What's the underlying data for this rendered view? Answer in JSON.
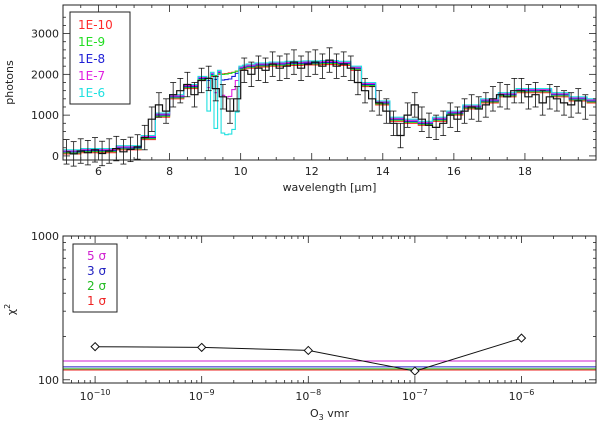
{
  "chart_data": [
    {
      "type": "line",
      "title": "",
      "xlabel": "wavelength [μm]",
      "ylabel": "photons",
      "xlim": [
        5.0,
        20.0
      ],
      "ylim": [
        -100,
        3700
      ],
      "x_ticks": [
        6,
        8,
        10,
        12,
        14,
        16,
        18
      ],
      "y_ticks": [
        0,
        1000,
        2000,
        3000
      ],
      "legend_position": "top-left",
      "observed": {
        "name": "observed",
        "x": [
          5.1,
          5.3,
          5.5,
          5.7,
          5.9,
          6.1,
          6.3,
          6.5,
          6.7,
          6.9,
          7.1,
          7.3,
          7.5,
          7.7,
          7.9,
          8.1,
          8.3,
          8.5,
          8.7,
          8.9,
          9.1,
          9.3,
          9.5,
          9.7,
          9.9,
          10.1,
          10.3,
          10.5,
          10.7,
          10.9,
          11.1,
          11.3,
          11.5,
          11.7,
          11.9,
          12.1,
          12.3,
          12.5,
          12.7,
          12.9,
          13.1,
          13.3,
          13.5,
          13.7,
          13.9,
          14.1,
          14.3,
          14.5,
          14.7,
          14.9,
          15.1,
          15.3,
          15.5,
          15.7,
          15.9,
          16.1,
          16.3,
          16.5,
          16.7,
          16.9,
          17.1,
          17.3,
          17.5,
          17.7,
          17.9,
          18.1,
          18.3,
          18.5,
          18.7,
          18.9,
          19.1,
          19.3,
          19.5,
          19.7
        ],
        "y": [
          100,
          50,
          120,
          80,
          150,
          60,
          120,
          180,
          100,
          160,
          220,
          450,
          900,
          1250,
          1100,
          1500,
          1600,
          1750,
          1500,
          1850,
          1900,
          1650,
          1450,
          1100,
          1400,
          2100,
          2000,
          2150,
          2100,
          2250,
          2150,
          2200,
          2300,
          2150,
          2250,
          2300,
          2200,
          2350,
          2200,
          2250,
          2150,
          1800,
          1600,
          1400,
          1300,
          1100,
          800,
          500,
          1000,
          1250,
          900,
          750,
          700,
          800,
          1000,
          900,
          1100,
          1200,
          1150,
          1250,
          1400,
          1500,
          1450,
          1600,
          1600,
          1450,
          1500,
          1300,
          1450,
          1400,
          1300,
          1250,
          1350,
          1200
        ],
        "error": 300
      },
      "series": [
        {
          "name": "1E-10",
          "color": "#ff2a2a"
        },
        {
          "name": "1E-9",
          "color": "#22dd22"
        },
        {
          "name": "1E-8",
          "color": "#1f1fd6"
        },
        {
          "name": "1E-7",
          "color": "#e020e0"
        },
        {
          "name": "1E-6",
          "color": "#20e0e0"
        }
      ],
      "model_x": [
        5.0,
        6.0,
        7.0,
        7.4,
        7.8,
        8.2,
        8.6,
        9.0,
        9.2,
        9.4,
        9.6,
        9.8,
        10.0,
        10.2,
        10.6,
        11.0,
        11.5,
        12.0,
        12.5,
        13.0,
        13.2,
        13.6,
        14.0,
        14.4,
        14.8,
        15.2,
        15.6,
        16.0,
        16.5,
        17.0,
        17.5,
        18.0,
        18.5,
        19.0,
        19.5,
        20.0
      ],
      "model_base": [
        50,
        80,
        150,
        400,
        950,
        1400,
        1650,
        1850,
        1950,
        2000,
        2020,
        2050,
        2100,
        2150,
        2180,
        2200,
        2220,
        2230,
        2240,
        2220,
        2100,
        1700,
        1250,
        850,
        800,
        750,
        850,
        1000,
        1150,
        1300,
        1450,
        1550,
        1550,
        1450,
        1350,
        1300
      ],
      "band_x": [
        9.1,
        9.3,
        9.5,
        9.6,
        9.7,
        9.8,
        9.9,
        10.1
      ],
      "band_dip": {
        "1E-10": [
          0,
          0,
          0,
          0,
          0,
          0,
          0,
          0
        ],
        "1E-9": [
          -20,
          -30,
          -40,
          -40,
          -40,
          -30,
          -20,
          0
        ],
        "1E-8": [
          -100,
          -150,
          -200,
          -200,
          -200,
          -150,
          -100,
          0
        ],
        "1E-7": [
          -300,
          -500,
          -600,
          -650,
          -650,
          -500,
          -300,
          0
        ],
        "1E-6": [
          -900,
          -1400,
          -1550,
          -1600,
          -1600,
          -1500,
          -1100,
          0
        ]
      }
    },
    {
      "type": "line",
      "title": "",
      "xlabel": "O3 vmr",
      "xlabel_main": "O",
      "xlabel_sub": "3",
      "xlabel_rest": " vmr",
      "ylabel": "χ²",
      "ylabel_main": "χ",
      "ylabel_sup": "2",
      "xscale": "log",
      "yscale": "log",
      "xlim": [
        5e-11,
        5e-06
      ],
      "ylim": [
        95,
        1000
      ],
      "x_ticks": [
        {
          "value": 1e-10,
          "mantissa": "10",
          "exp": "−10"
        },
        {
          "value": 1e-09,
          "mantissa": "10",
          "exp": "−9"
        },
        {
          "value": 1e-08,
          "mantissa": "10",
          "exp": "−8"
        },
        {
          "value": 1e-07,
          "mantissa": "10",
          "exp": "−7"
        },
        {
          "value": 1e-06,
          "mantissa": "10",
          "exp": "−6"
        }
      ],
      "y_ticks": [
        {
          "value": 100,
          "label": "100"
        },
        {
          "value": 1000,
          "label": "1000"
        }
      ],
      "chi2": {
        "x": [
          1e-10,
          1e-09,
          1e-08,
          1e-07,
          1e-06
        ],
        "y": [
          170,
          168,
          160,
          115,
          195
        ],
        "marker": "diamond"
      },
      "sigma_lines": [
        {
          "name": "5 σ",
          "value": 135,
          "color": "#d020d0"
        },
        {
          "name": "3 σ",
          "value": 123,
          "color": "#2020c0"
        },
        {
          "name": "2 σ",
          "value": 119,
          "color": "#22bb22"
        },
        {
          "name": "1 σ",
          "value": 117,
          "color": "#ee2222"
        }
      ],
      "legend_position": "top-left"
    }
  ]
}
